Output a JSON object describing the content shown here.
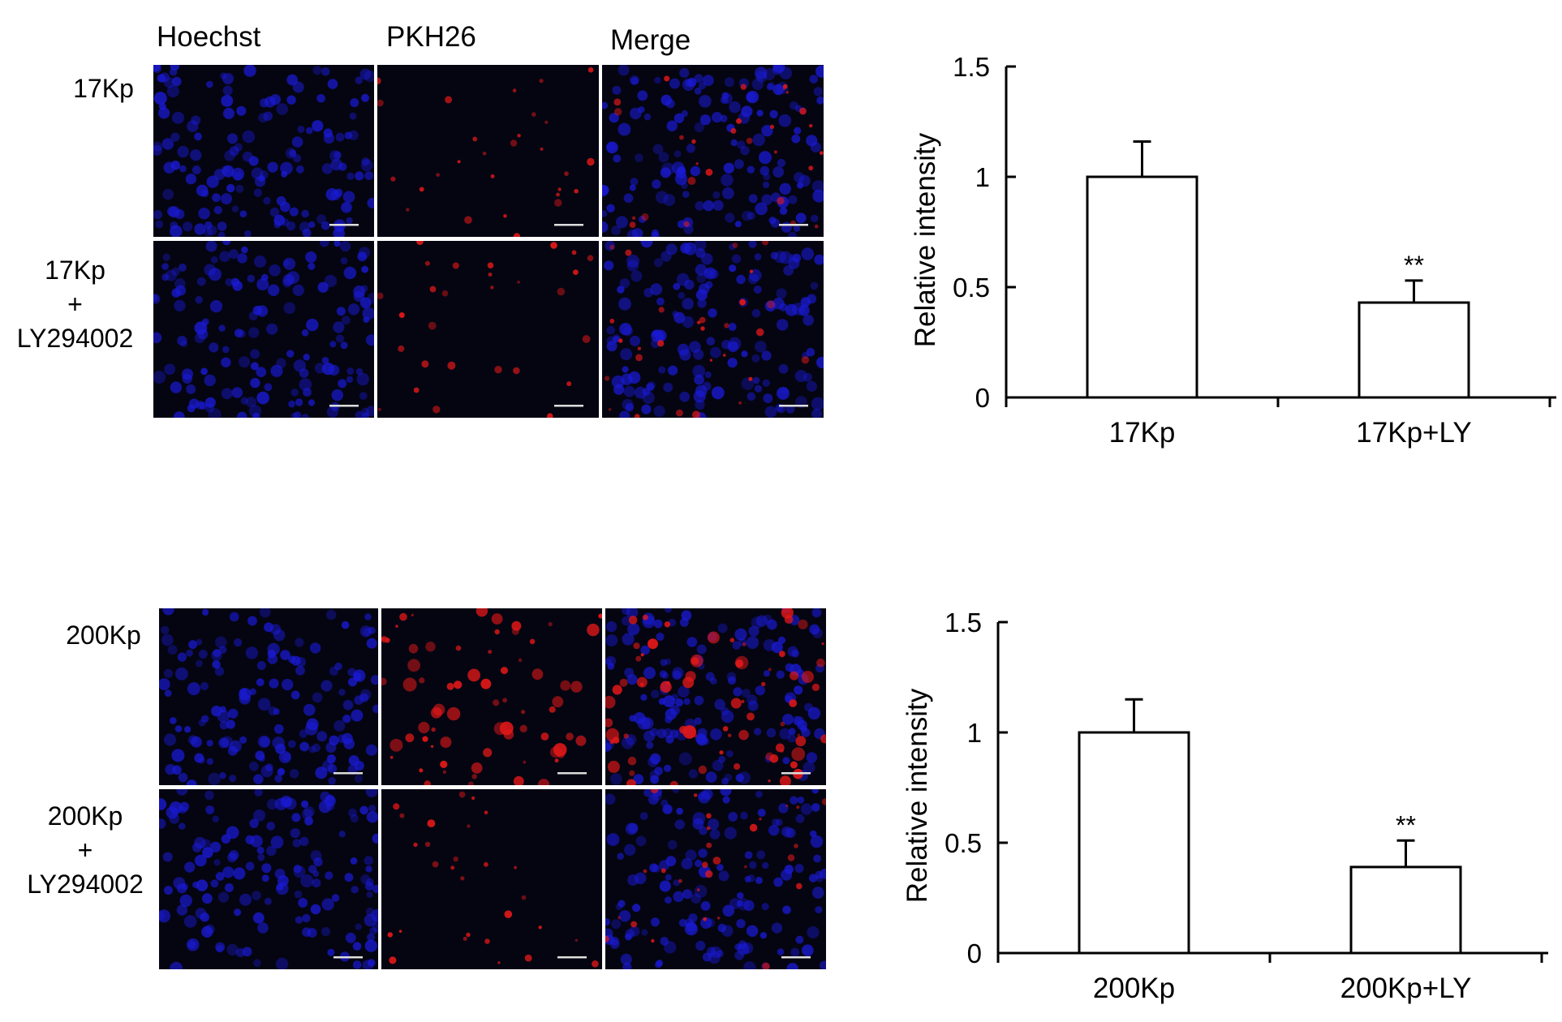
{
  "top_figure": {
    "column_labels": [
      "Hoechst",
      "PKH26",
      "Merge"
    ],
    "row_labels": [
      [
        "17Kp"
      ],
      [
        "17Kp",
        "+",
        "LY294002"
      ]
    ]
  },
  "bottom_figure": {
    "row_labels": [
      [
        "200Kp"
      ],
      [
        "200Kp",
        "+",
        "LY294002"
      ]
    ]
  },
  "colors": {
    "nuclei": "#1a1ad6",
    "pkh26": "#e01818",
    "panel_bg": "#050512"
  },
  "chart_data": [
    {
      "type": "bar",
      "categories": [
        "17Kp",
        "17Kp+LY"
      ],
      "values": [
        1.0,
        0.43
      ],
      "errors": [
        0.16,
        0.1
      ],
      "annotations": [
        "",
        "**"
      ],
      "ylabel": "Relative intensity",
      "ylim": [
        0,
        1.5
      ],
      "yticks": [
        0,
        0.5,
        1,
        1.5
      ],
      "ytick_labels": [
        "0",
        "0.5",
        "1",
        "1.5"
      ],
      "grid": false
    },
    {
      "type": "bar",
      "categories": [
        "200Kp",
        "200Kp+LY"
      ],
      "values": [
        1.0,
        0.39
      ],
      "errors": [
        0.15,
        0.12
      ],
      "annotations": [
        "",
        "**"
      ],
      "ylabel": "Relative intensity",
      "ylim": [
        0,
        1.5
      ],
      "yticks": [
        0,
        0.5,
        1,
        1.5
      ],
      "ytick_labels": [
        "0",
        "0.5",
        "1",
        "1.5"
      ],
      "grid": false
    }
  ]
}
